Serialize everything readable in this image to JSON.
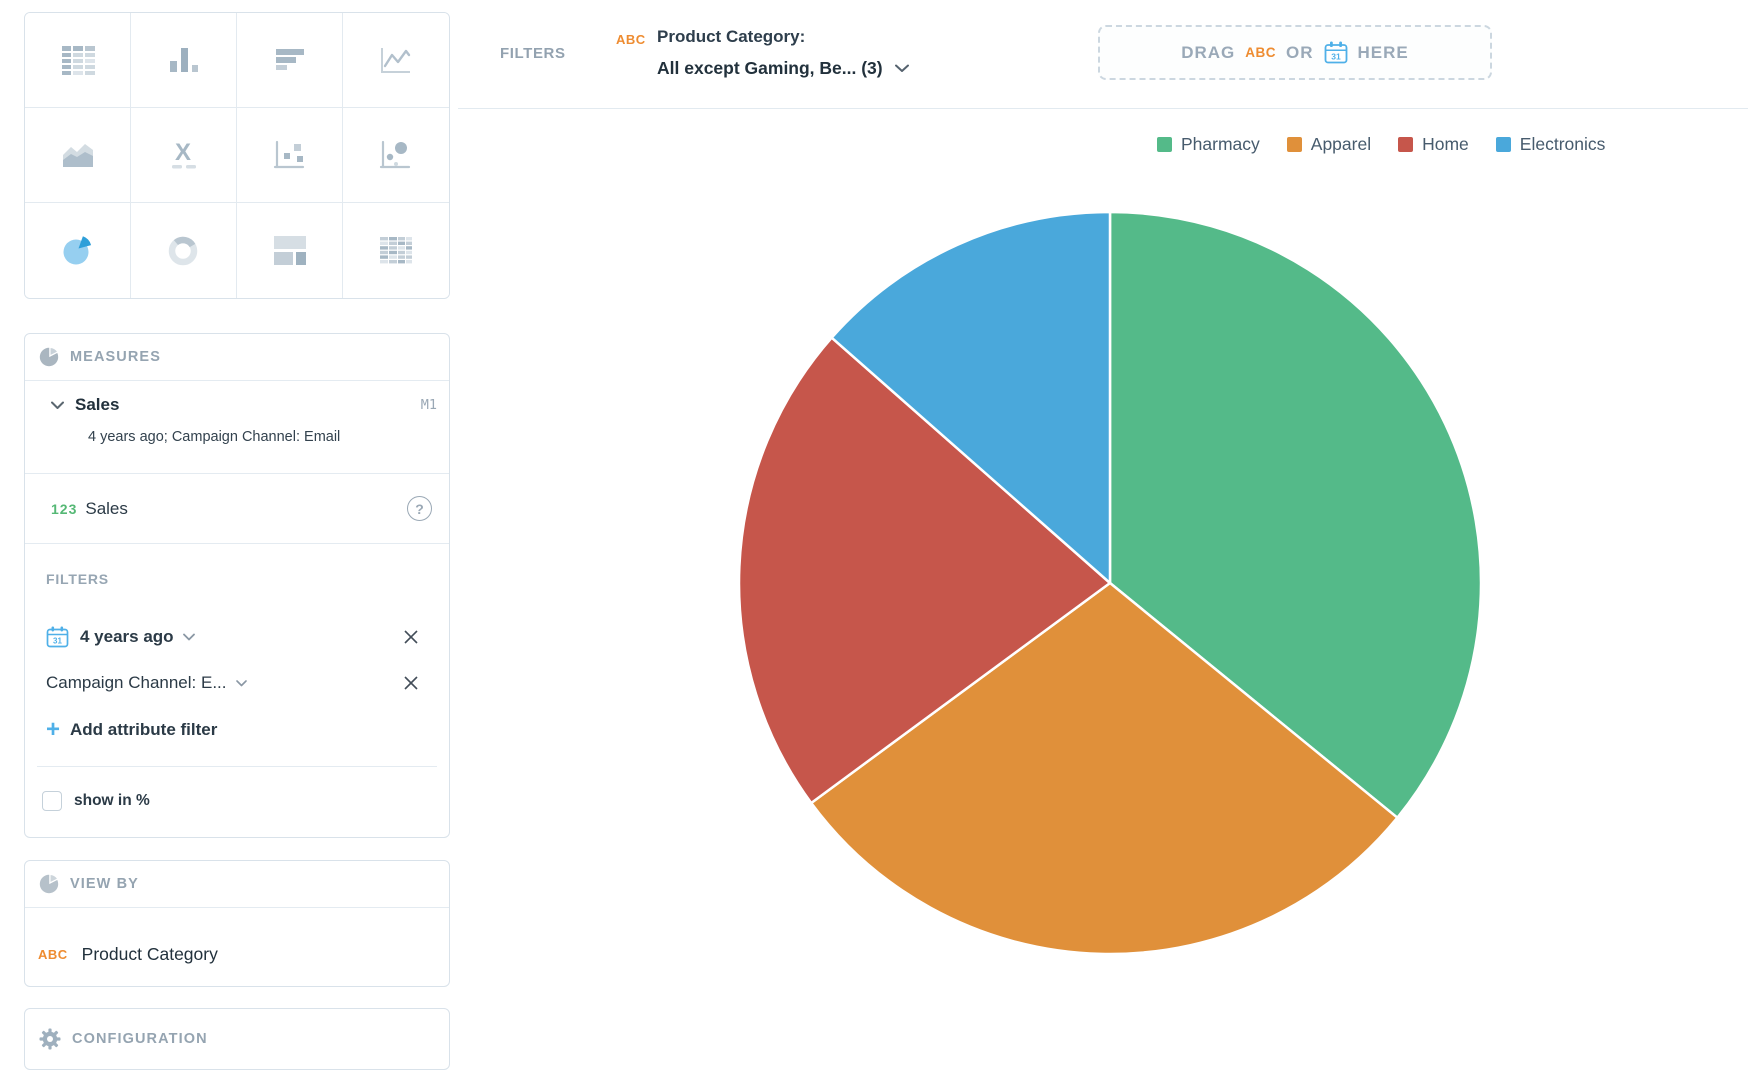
{
  "visualization_picker": {
    "types": [
      "table",
      "column-chart",
      "bar-chart",
      "line-chart",
      "area-chart",
      "headline",
      "scatter-plot",
      "bubble-chart",
      "pie-chart",
      "donut-chart",
      "treemap",
      "heatmap"
    ],
    "selected": "pie-chart",
    "headline_glyph": "X"
  },
  "icons": {
    "calendar_day": "31",
    "help_glyph": "?",
    "plus_glyph": "+"
  },
  "buckets": {
    "measures": {
      "title": "MEASURES",
      "item": {
        "name": "Sales",
        "tag": "M1",
        "subtitle": "4 years ago; Campaign Channel: Email",
        "measure_prefix": "123",
        "measure_label": "Sales"
      },
      "filters": {
        "title": "FILTERS",
        "date_filter": "4 years ago",
        "attribute_filter": "Campaign Channel: E...",
        "add_filter_label": "Add attribute filter",
        "show_in_percent_label": "show in %"
      }
    },
    "view_by": {
      "title": "VIEW BY",
      "item_tag": "ABC",
      "item_label": "Product Category"
    },
    "configuration": {
      "title": "CONFIGURATION"
    }
  },
  "filter_bar": {
    "label": "FILTERS",
    "token_tag": "ABC",
    "token_line1": "Product Category:",
    "token_line2": "All except Gaming, Be... (3)",
    "dropzone": {
      "drag": "DRAG",
      "abc": "ABC",
      "or": "OR",
      "here": "HERE"
    }
  },
  "chart_data": {
    "type": "pie",
    "categories": [
      "Pharmacy",
      "Apparel",
      "Home",
      "Electronics"
    ],
    "values_percent": [
      35.9,
      29.0,
      21.6,
      13.5
    ],
    "colors": [
      "#54BA89",
      "#E0903A",
      "#C6564B",
      "#4AA8DB"
    ],
    "start_angle_deg": 0,
    "direction": "clockwise",
    "slice_border_color": "#FFFFFF",
    "legend_position": "top-right"
  },
  "colors": {
    "accent_blue": "#4FB0E8",
    "accent_orange": "#EE8C31",
    "measure_green": "#55B875",
    "icon_gray": "#A7B8C5",
    "panel_border": "#D9E2EA"
  }
}
